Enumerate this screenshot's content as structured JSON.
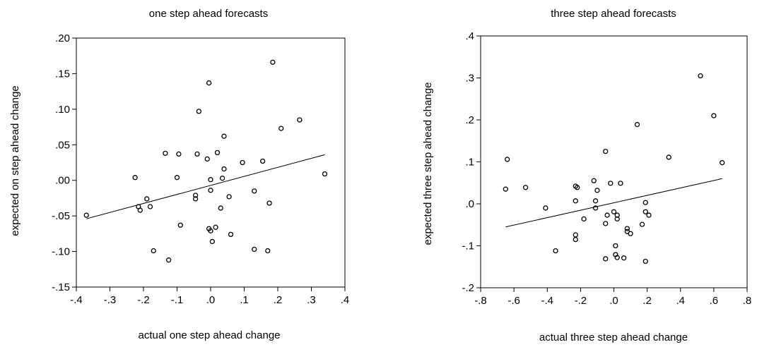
{
  "chart_data": [
    {
      "type": "scatter",
      "title": "one step ahead forecasts",
      "xlabel": "actual one step ahead change",
      "ylabel": "expected on step ahead change",
      "xlim": [
        -0.4,
        0.4
      ],
      "ylim": [
        -0.15,
        0.2
      ],
      "xticks": [
        -0.4,
        -0.3,
        -0.2,
        -0.1,
        0.0,
        0.1,
        0.2,
        0.3,
        0.4
      ],
      "xtick_labels": [
        "-.4",
        "-.3",
        "-.2",
        "-.1",
        ".0",
        ".1",
        ".2",
        ".3",
        ".4"
      ],
      "yticks": [
        -0.15,
        -0.1,
        -0.05,
        0.0,
        0.05,
        0.1,
        0.15,
        0.2
      ],
      "ytick_labels": [
        "-.15",
        "-.10",
        "-.05",
        ".00",
        ".05",
        ".10",
        ".15",
        ".20"
      ],
      "grid": false,
      "points": [
        [
          -0.37,
          -0.049
        ],
        [
          -0.225,
          0.004
        ],
        [
          -0.215,
          -0.037
        ],
        [
          -0.21,
          -0.042
        ],
        [
          -0.19,
          -0.026
        ],
        [
          -0.18,
          -0.037
        ],
        [
          -0.17,
          -0.099
        ],
        [
          -0.135,
          0.038
        ],
        [
          -0.125,
          -0.112
        ],
        [
          -0.1,
          0.004
        ],
        [
          -0.095,
          0.037
        ],
        [
          -0.09,
          -0.063
        ],
        [
          -0.045,
          -0.021
        ],
        [
          -0.045,
          -0.026
        ],
        [
          -0.04,
          0.037
        ],
        [
          -0.035,
          0.097
        ],
        [
          -0.01,
          0.03
        ],
        [
          -0.005,
          0.137
        ],
        [
          -0.005,
          -0.068
        ],
        [
          0.0,
          0.001
        ],
        [
          0.0,
          -0.014
        ],
        [
          0.0,
          -0.071
        ],
        [
          0.005,
          -0.086
        ],
        [
          0.015,
          -0.066
        ],
        [
          0.02,
          0.039
        ],
        [
          0.03,
          -0.039
        ],
        [
          0.035,
          0.003
        ],
        [
          0.04,
          0.016
        ],
        [
          0.04,
          0.062
        ],
        [
          0.055,
          -0.023
        ],
        [
          0.06,
          -0.076
        ],
        [
          0.095,
          0.025
        ],
        [
          0.13,
          -0.097
        ],
        [
          0.13,
          -0.015
        ],
        [
          0.155,
          0.027
        ],
        [
          0.17,
          -0.099
        ],
        [
          0.175,
          -0.032
        ],
        [
          0.185,
          0.166
        ],
        [
          0.21,
          0.073
        ],
        [
          0.265,
          0.085
        ],
        [
          0.34,
          0.009
        ]
      ],
      "fit_line": [
        [
          -0.37,
          -0.054
        ],
        [
          0.34,
          0.036
        ]
      ]
    },
    {
      "type": "scatter",
      "title": "three step ahead forecasts",
      "xlabel": "actual three step ahead change",
      "ylabel": "expected three step ahead change",
      "xlim": [
        -0.8,
        0.8
      ],
      "ylim": [
        -0.2,
        0.4
      ],
      "xticks": [
        -0.8,
        -0.6,
        -0.4,
        -0.2,
        0.0,
        0.2,
        0.4,
        0.6,
        0.8
      ],
      "xtick_labels": [
        "-.8",
        "-.6",
        "-.4",
        "-.2",
        ".0",
        ".2",
        ".4",
        ".6",
        ".8"
      ],
      "yticks": [
        -0.2,
        -0.1,
        0.0,
        0.1,
        0.2,
        0.3,
        0.4
      ],
      "ytick_labels": [
        "-.2",
        "-.1",
        ".0",
        ".1",
        ".2",
        ".3",
        ".4"
      ],
      "grid": false,
      "points": [
        [
          -0.65,
          0.035
        ],
        [
          -0.64,
          0.106
        ],
        [
          -0.53,
          0.039
        ],
        [
          -0.41,
          -0.01
        ],
        [
          -0.35,
          -0.112
        ],
        [
          -0.23,
          0.042
        ],
        [
          -0.23,
          0.007
        ],
        [
          -0.23,
          -0.074
        ],
        [
          -0.23,
          -0.085
        ],
        [
          -0.22,
          0.039
        ],
        [
          -0.18,
          -0.036
        ],
        [
          -0.12,
          0.055
        ],
        [
          -0.11,
          -0.01
        ],
        [
          -0.11,
          0.007
        ],
        [
          -0.1,
          0.032
        ],
        [
          -0.05,
          0.125
        ],
        [
          -0.05,
          -0.047
        ],
        [
          -0.05,
          -0.131
        ],
        [
          -0.04,
          -0.027
        ],
        [
          -0.02,
          0.049
        ],
        [
          0.0,
          -0.019
        ],
        [
          0.01,
          -0.1
        ],
        [
          0.01,
          -0.121
        ],
        [
          0.02,
          -0.036
        ],
        [
          0.02,
          -0.027
        ],
        [
          0.02,
          -0.128
        ],
        [
          0.04,
          0.049
        ],
        [
          0.06,
          -0.129
        ],
        [
          0.08,
          -0.059
        ],
        [
          0.08,
          -0.066
        ],
        [
          0.1,
          -0.071
        ],
        [
          0.14,
          0.189
        ],
        [
          0.17,
          -0.049
        ],
        [
          0.19,
          0.003
        ],
        [
          0.19,
          -0.019
        ],
        [
          0.19,
          -0.137
        ],
        [
          0.21,
          -0.027
        ],
        [
          0.33,
          0.111
        ],
        [
          0.52,
          0.305
        ],
        [
          0.6,
          0.21
        ],
        [
          0.65,
          0.098
        ]
      ],
      "fit_line": [
        [
          -0.65,
          -0.055
        ],
        [
          0.65,
          0.06
        ]
      ]
    }
  ]
}
